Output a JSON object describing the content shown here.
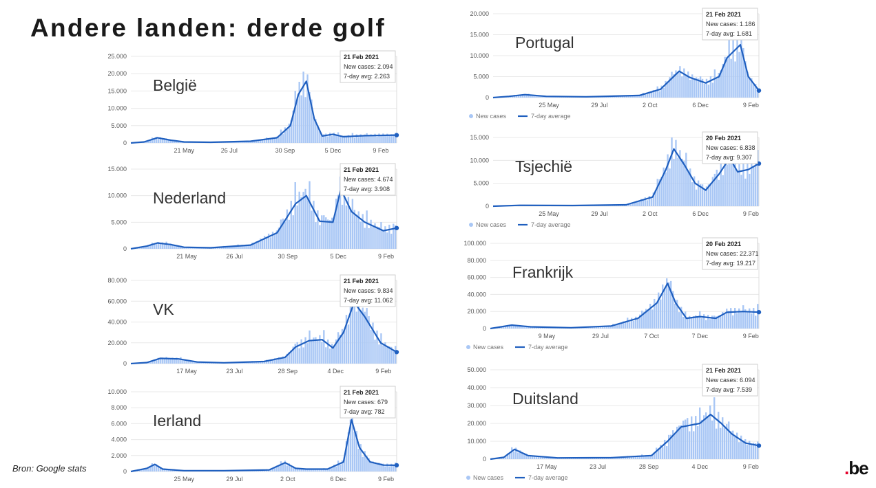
{
  "slide": {
    "title": "Andere landen: derde golf",
    "source": "Bron: Google stats",
    "logo": ".be"
  },
  "colors": {
    "bars": "#a9c7f5",
    "line": "#1f5fbf",
    "grid": "#e8e8e8"
  },
  "chart_data": [
    {
      "id": "belgie",
      "type": "bar",
      "country": "België",
      "yticks": [
        "0",
        "5.000",
        "10.000",
        "15.000",
        "20.000",
        "25.000"
      ],
      "ymax": 25000,
      "xticks": [
        "21 May",
        "26 Jul",
        "30 Sep",
        "5 Dec",
        "9 Feb"
      ],
      "xtick_pos": [
        0.2,
        0.37,
        0.58,
        0.76,
        0.94
      ],
      "tooltip": {
        "date": "21 Feb 2021",
        "new": "New cases: 2.094",
        "avg": "7-day avg: 2.263"
      },
      "legend": false,
      "x": [
        0,
        0.05,
        0.1,
        0.15,
        0.2,
        0.3,
        0.45,
        0.55,
        0.6,
        0.63,
        0.66,
        0.69,
        0.72,
        0.76,
        0.8,
        0.88,
        1.0
      ],
      "avg": [
        0,
        300,
        1500,
        800,
        300,
        200,
        500,
        1500,
        5000,
        14000,
        17800,
        7000,
        2000,
        2500,
        1800,
        2100,
        2263
      ]
    },
    {
      "id": "nederland",
      "type": "bar",
      "country": "Nederland",
      "yticks": [
        "0",
        "5.000",
        "10.000",
        "15.000"
      ],
      "ymax": 15000,
      "xticks": [
        "21 May",
        "26 Jul",
        "30 Sep",
        "5 Dec",
        "9 Feb"
      ],
      "xtick_pos": [
        0.21,
        0.39,
        0.59,
        0.78,
        0.96
      ],
      "tooltip": {
        "date": "21 Feb 2021",
        "new": "New cases: 4.674",
        "avg": "7-day avg: 3.908"
      },
      "legend": false,
      "x": [
        0,
        0.06,
        0.1,
        0.15,
        0.2,
        0.3,
        0.45,
        0.55,
        0.62,
        0.66,
        0.71,
        0.76,
        0.79,
        0.83,
        0.88,
        0.95,
        1.0
      ],
      "avg": [
        0,
        500,
        1100,
        800,
        300,
        200,
        700,
        3000,
        8500,
        10000,
        5200,
        5000,
        11200,
        7000,
        5000,
        3400,
        3908
      ]
    },
    {
      "id": "vk",
      "type": "bar",
      "country": "VK",
      "yticks": [
        "0",
        "20.000",
        "40.000",
        "60.000",
        "80.000"
      ],
      "ymax": 80000,
      "xticks": [
        "17 May",
        "23 Jul",
        "28 Sep",
        "4 Dec",
        "9 Feb"
      ],
      "xtick_pos": [
        0.21,
        0.39,
        0.59,
        0.77,
        0.95
      ],
      "tooltip": {
        "date": "21 Feb 2021",
        "new": "New cases: 9.834",
        "avg": "7-day avg: 11.062"
      },
      "legend": false,
      "x": [
        0,
        0.06,
        0.11,
        0.18,
        0.25,
        0.35,
        0.5,
        0.58,
        0.62,
        0.67,
        0.72,
        0.76,
        0.8,
        0.84,
        0.88,
        0.94,
        1.0
      ],
      "avg": [
        0,
        1000,
        5000,
        4500,
        1500,
        800,
        2000,
        6000,
        16000,
        22000,
        23000,
        15000,
        30000,
        59000,
        45000,
        20000,
        11062
      ]
    },
    {
      "id": "ierland",
      "type": "bar",
      "country": "Ierland",
      "yticks": [
        "0",
        "2.000",
        "4.000",
        "6.000",
        "8.000",
        "10.000"
      ],
      "ymax": 10000,
      "xticks": [
        "25 May",
        "29 Jul",
        "2 Oct",
        "6 Dec",
        "9 Feb"
      ],
      "xtick_pos": [
        0.2,
        0.39,
        0.59,
        0.78,
        0.96
      ],
      "tooltip": {
        "date": "21 Feb 2021",
        "new": "New cases: 679",
        "avg": "7-day avg: 782"
      },
      "legend": false,
      "x": [
        0,
        0.06,
        0.09,
        0.12,
        0.2,
        0.35,
        0.52,
        0.58,
        0.62,
        0.66,
        0.74,
        0.8,
        0.83,
        0.86,
        0.9,
        0.95,
        1.0
      ],
      "avg": [
        0,
        400,
        900,
        300,
        100,
        100,
        200,
        1100,
        400,
        300,
        300,
        1200,
        6500,
        3000,
        1200,
        800,
        782
      ]
    },
    {
      "id": "portugal",
      "type": "bar",
      "country": "Portugal",
      "yticks": [
        "0",
        "5.000",
        "10.000",
        "15.000",
        "20.000"
      ],
      "ymax": 20000,
      "xticks": [
        "25 May",
        "29 Jul",
        "2 Oct",
        "6 Dec",
        "9 Feb"
      ],
      "xtick_pos": [
        0.21,
        0.4,
        0.59,
        0.78,
        0.97
      ],
      "tooltip": {
        "date": "21 Feb 2021",
        "new": "New cases: 1.186",
        "avg": "7-day avg: 1.681"
      },
      "legend": true,
      "legend_labels": [
        "New cases",
        "7-day average"
      ],
      "x": [
        0,
        0.06,
        0.12,
        0.2,
        0.35,
        0.55,
        0.63,
        0.7,
        0.74,
        0.8,
        0.85,
        0.88,
        0.93,
        0.96,
        1.0
      ],
      "avg": [
        0,
        300,
        700,
        300,
        200,
        500,
        2000,
        6300,
        4800,
        3500,
        5000,
        9500,
        12600,
        5000,
        1681
      ]
    },
    {
      "id": "tsjechie",
      "type": "bar",
      "country": "Tsjechië",
      "yticks": [
        "0",
        "5.000",
        "10.000",
        "15.000"
      ],
      "ymax": 15000,
      "xticks": [
        "25 May",
        "29 Jul",
        "2 Oct",
        "6 Dec",
        "9 Feb"
      ],
      "xtick_pos": [
        0.21,
        0.4,
        0.59,
        0.78,
        0.97
      ],
      "tooltip": {
        "date": "20 Feb 2021",
        "new": "New cases: 6.838",
        "avg": "7-day avg: 9.307"
      },
      "legend": true,
      "legend_labels": [
        "New cases",
        "7-day average"
      ],
      "x": [
        0,
        0.1,
        0.3,
        0.5,
        0.6,
        0.65,
        0.68,
        0.72,
        0.76,
        0.8,
        0.85,
        0.89,
        0.92,
        0.96,
        1.0
      ],
      "avg": [
        0,
        200,
        150,
        300,
        2000,
        8000,
        12500,
        9000,
        5000,
        3500,
        7000,
        10500,
        7500,
        8000,
        9307
      ]
    },
    {
      "id": "frankrijk",
      "type": "bar",
      "country": "Frankrijk",
      "yticks": [
        "0",
        "20.000",
        "40.000",
        "60.000",
        "80.000",
        "100.000"
      ],
      "ymax": 100000,
      "xticks": [
        "9 May",
        "29 Jul",
        "7 Oct",
        "7 Dec",
        "9 Feb"
      ],
      "xtick_pos": [
        0.21,
        0.41,
        0.6,
        0.78,
        0.97
      ],
      "tooltip": {
        "date": "20 Feb 2021",
        "new": "New cases: 22.371",
        "avg": "7-day avg: 19.217"
      },
      "legend": true,
      "legend_labels": [
        "New cases",
        "7-day average"
      ],
      "x": [
        0,
        0.08,
        0.15,
        0.3,
        0.45,
        0.55,
        0.62,
        0.66,
        0.69,
        0.73,
        0.78,
        0.84,
        0.88,
        0.94,
        1.0
      ],
      "avg": [
        0,
        4000,
        2000,
        1000,
        3000,
        12000,
        30000,
        53000,
        30000,
        12000,
        14000,
        12000,
        19000,
        20000,
        19217
      ]
    },
    {
      "id": "duitsland",
      "type": "bar",
      "country": "Duitsland",
      "yticks": [
        "0",
        "10.000",
        "20.000",
        "30.000",
        "40.000",
        "50.000"
      ],
      "ymax": 50000,
      "xticks": [
        "17 May",
        "23 Jul",
        "28 Sep",
        "4 Dec",
        "9 Feb"
      ],
      "xtick_pos": [
        0.21,
        0.4,
        0.59,
        0.78,
        0.97
      ],
      "tooltip": {
        "date": "21 Feb 2021",
        "new": "New cases: 6.094",
        "avg": "7-day avg: 7.539"
      },
      "legend": true,
      "legend_labels": [
        "New cases",
        "7-day average"
      ],
      "x": [
        0,
        0.05,
        0.09,
        0.14,
        0.25,
        0.45,
        0.6,
        0.66,
        0.71,
        0.78,
        0.82,
        0.86,
        0.9,
        0.95,
        1.0
      ],
      "avg": [
        0,
        1000,
        5500,
        2000,
        700,
        800,
        2000,
        10000,
        18000,
        20000,
        25000,
        20000,
        14000,
        9000,
        7539
      ]
    }
  ]
}
